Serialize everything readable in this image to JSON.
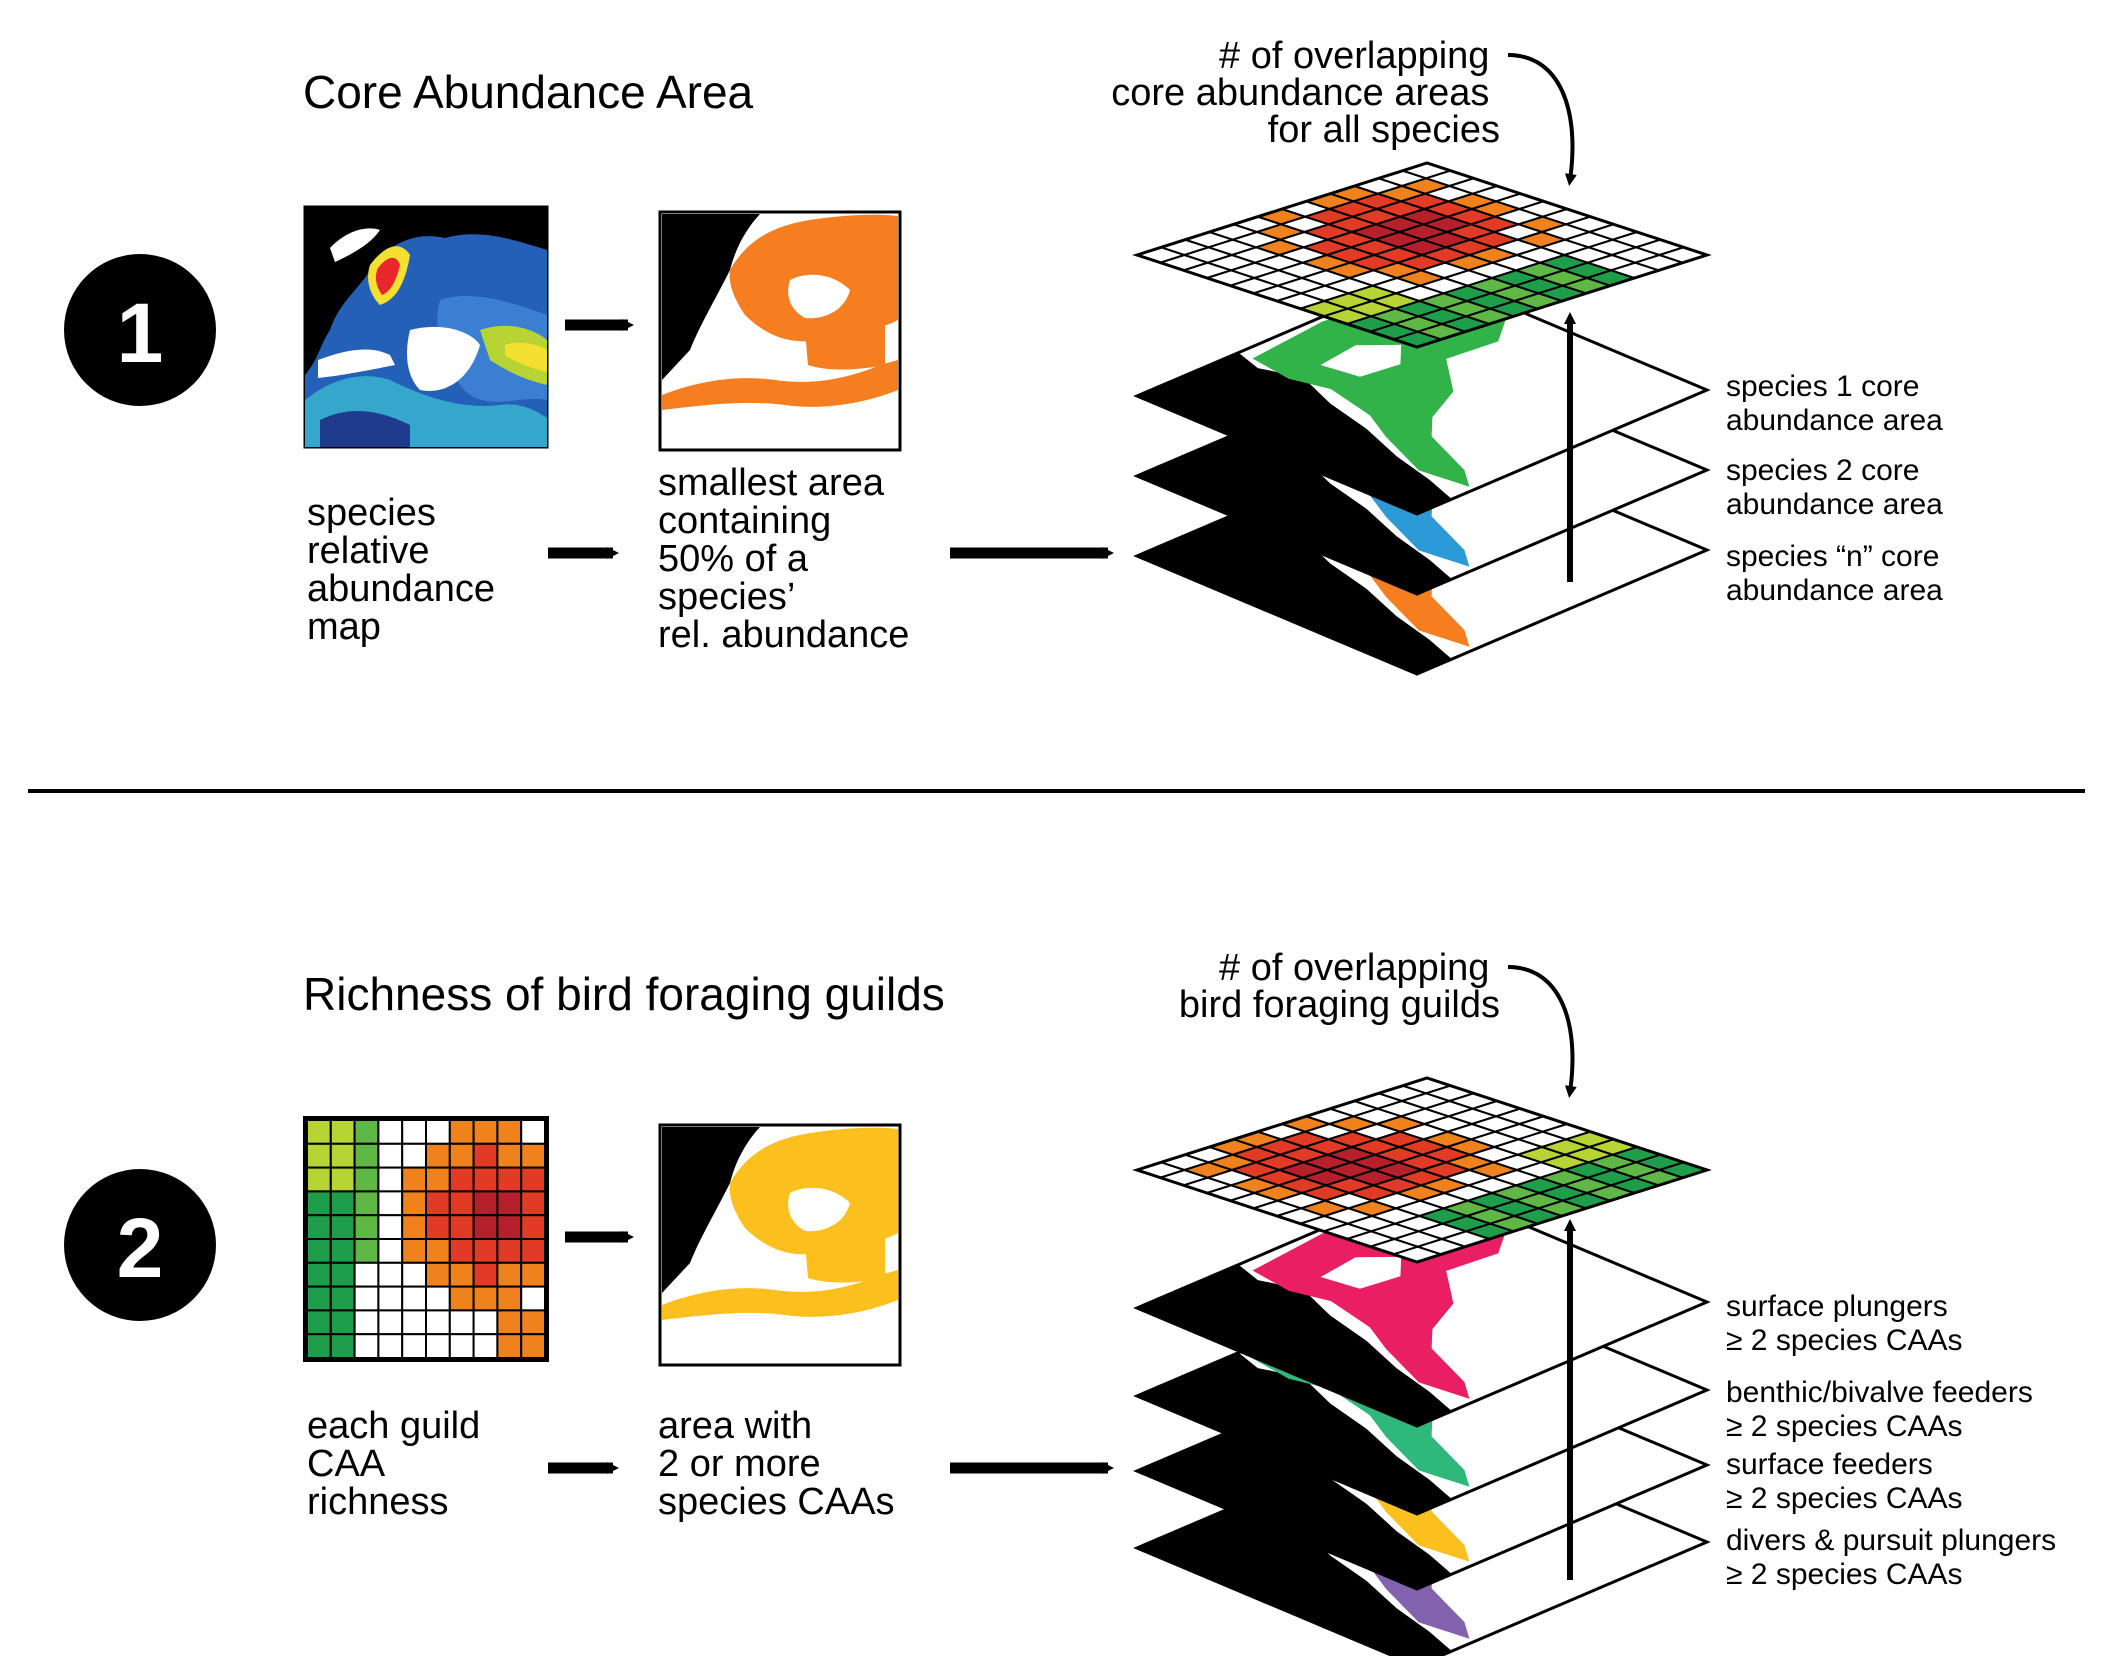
{
  "colors": {
    "green_light": "#b7d434",
    "green_mid": "#5fb846",
    "green_dark": "#1e9e4a",
    "orange": "#f0821e",
    "orange_light": "#f7a826",
    "red": "#e23b25",
    "dark_red": "#b5202a",
    "land": "#000000",
    "sp1": "#32b34a",
    "sp2": "#2b9ad6",
    "spn": "#f47e20",
    "caa": "#f47e20",
    "guild_area": "#fcc01e",
    "surface_plungers": "#ea1e63",
    "benthic": "#2fb87b",
    "surface_feeders": "#fcc01e",
    "divers": "#8262ae"
  },
  "section1": {
    "number": "1",
    "title": "Core Abundance Area",
    "left_caption": [
      "species",
      "relative",
      "abundance",
      "map"
    ],
    "mid_caption": [
      "smallest area",
      "containing",
      "50% of a",
      "species’",
      "rel. abundance"
    ],
    "top_caption": [
      "# of overlapping",
      "core abundance areas",
      "for all species"
    ],
    "layers": [
      {
        "label": [
          "species 1 core",
          "abundance area"
        ],
        "color_key": "sp1"
      },
      {
        "label": [
          "species 2 core",
          "abundance area"
        ],
        "color_key": "sp2"
      },
      {
        "label": [
          "species “n” core",
          "abundance area"
        ],
        "color_key": "spn"
      }
    ]
  },
  "section2": {
    "number": "2",
    "title": "Richness of bird foraging guilds",
    "left_caption": [
      "each guild",
      "CAA",
      "richness"
    ],
    "mid_caption": [
      "area with",
      "2 or more",
      "species CAAs"
    ],
    "top_caption": [
      "# of overlapping",
      "bird foraging guilds"
    ],
    "layers": [
      {
        "label": [
          "surface plungers",
          "≥ 2 species CAAs"
        ],
        "color_key": "surface_plungers"
      },
      {
        "label": [
          "benthic/bivalve feeders",
          "≥ 2 species CAAs"
        ],
        "color_key": "benthic"
      },
      {
        "label": [
          "surface feeders",
          "≥ 2 species CAAs"
        ],
        "color_key": "surface_feeders"
      },
      {
        "label": [
          "divers & pursuit plungers",
          "≥ 2 species CAAs"
        ],
        "color_key": "divers"
      }
    ]
  }
}
